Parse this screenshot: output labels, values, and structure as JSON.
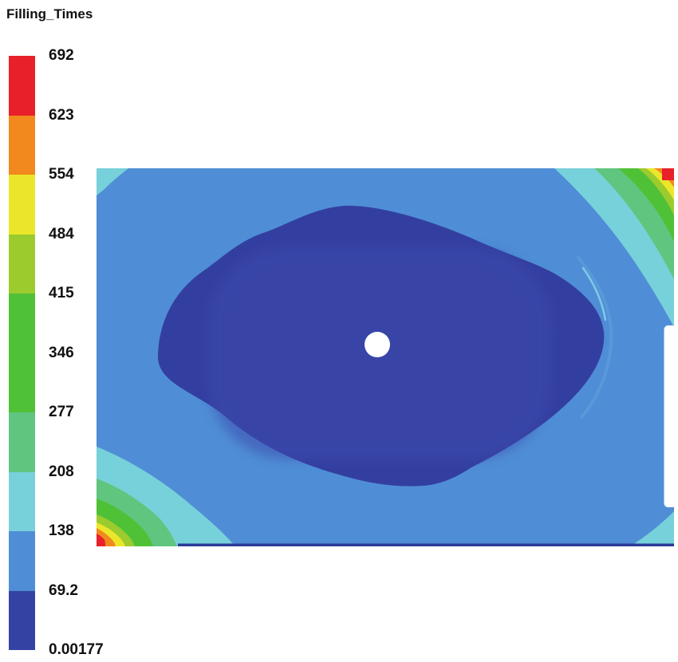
{
  "title": "Filling_Times",
  "legend": {
    "labels": [
      "692",
      "623",
      "554",
      "484",
      "415",
      "346",
      "277",
      "208",
      "138",
      "69.2",
      "0.00177"
    ],
    "bands": [
      {
        "name": "red",
        "color": "#e8202a"
      },
      {
        "name": "orange",
        "color": "#f1891e"
      },
      {
        "name": "yellow",
        "color": "#ece62a"
      },
      {
        "name": "yellow-green",
        "color": "#9ccb2e"
      },
      {
        "name": "green",
        "color": "#4fc137"
      },
      {
        "name": "green-2",
        "color": "#4fc137"
      },
      {
        "name": "sea-green",
        "color": "#5fc57f"
      },
      {
        "name": "turquoise",
        "color": "#77d1da"
      },
      {
        "name": "blue",
        "color": "#4f8ed6"
      },
      {
        "name": "dark-blue",
        "color": "#3443a3"
      }
    ]
  },
  "plot": {
    "colors": {
      "field": "#4f8ed6",
      "blob": "#333fa0",
      "inner": "#3e4cae",
      "ridge": "#5b9ad9",
      "ridge_highlight": "#82d2e4",
      "bottom_edge": "#2c3a99",
      "gate": "#ffffff"
    }
  },
  "chart_data": {
    "type": "heatmap",
    "title": "Filling_Times",
    "legend_position": "left",
    "levels": [
      692,
      623,
      554,
      484,
      415,
      346,
      277,
      208,
      138,
      69.2,
      0.00177
    ],
    "level_labels": [
      "692",
      "623",
      "554",
      "484",
      "415",
      "346",
      "277",
      "208",
      "138",
      "69.2",
      "0.00177"
    ],
    "band_colors_top_to_bottom": [
      "#e8202a",
      "#f1891e",
      "#ece62a",
      "#9ccb2e",
      "#4fc137",
      "#4fc137",
      "#5fc57f",
      "#77d1da",
      "#4f8ed6",
      "#3443a3"
    ],
    "features": [
      "rectangular molded plate filled from a single center gate shown as a white dot",
      "large dark-blue region (0.00177 - 69.2) surrounding the center gate",
      "light-blue field (69.2 - 138) over most of the plate",
      "last-to-fill rainbow fringes (138 up to 692, red at the extreme corner) in the bottom-left and top-right corners",
      "small turquoise patches (138 - 208) in the top-left and bottom-right corners",
      "thin bright ridge arc along the right side of the dark-blue region",
      "thin dark edge line along the bottom of the plate"
    ]
  }
}
